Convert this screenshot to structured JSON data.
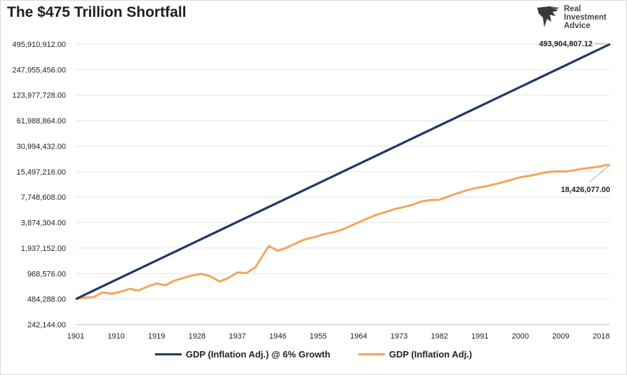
{
  "header": {
    "title": "The $475 Trillion Shortfall",
    "logo_lines": [
      "Real",
      "Investment",
      "Advice"
    ]
  },
  "chart_data": {
    "type": "line",
    "title": "The $475 Trillion Shortfall",
    "xlabel": "",
    "ylabel": "",
    "y_scale": "log2",
    "ylim": [
      242144,
      495910912
    ],
    "y_ticks": [
      "495,910,912.00",
      "247,955,456.00",
      "123,977,728.00",
      "61,988,864.00",
      "30,994,432.00",
      "15,497,216.00",
      "7,748,608.00",
      "3,874,304.00",
      "1,937,152.00",
      "968,576.00",
      "484,288.00",
      "242,144.00"
    ],
    "x_ticks": [
      "1901",
      "1910",
      "1919",
      "1928",
      "1937",
      "1946",
      "1955",
      "1964",
      "1973",
      "1982",
      "1991",
      "2000",
      "2009",
      "2018"
    ],
    "grid": true,
    "legend_position": "bottom",
    "drop_lines": true,
    "series": [
      {
        "name": "GDP (Inflation Adj.) @ 6% Growth",
        "color": "#203864",
        "growth_rate": 0.06,
        "x": [
          1901,
          2020
        ],
        "start_value": 484288,
        "end_value": 493904807.12
      },
      {
        "name": "GDP (Inflation Adj.)",
        "color": "#F4A460",
        "x": [
          1901,
          1903,
          1905,
          1907,
          1909,
          1911,
          1913,
          1915,
          1917,
          1919,
          1921,
          1923,
          1925,
          1927,
          1929,
          1931,
          1933,
          1935,
          1937,
          1939,
          1941,
          1943,
          1944,
          1946,
          1948,
          1950,
          1952,
          1954,
          1956,
          1958,
          1960,
          1962,
          1964,
          1966,
          1968,
          1970,
          1972,
          1974,
          1976,
          1978,
          1980,
          1982,
          1984,
          1986,
          1988,
          1990,
          1992,
          1994,
          1996,
          1998,
          2000,
          2002,
          2004,
          2006,
          2008,
          2010,
          2012,
          2014,
          2016,
          2018,
          2019,
          2020
        ],
        "values": [
          484288,
          505000,
          510000,
          580000,
          560000,
          590000,
          640000,
          610000,
          680000,
          740000,
          705000,
          800000,
          860000,
          920000,
          960000,
          900000,
          780000,
          860000,
          1000000,
          980000,
          1150000,
          1700000,
          2050000,
          1800000,
          1960000,
          2200000,
          2450000,
          2600000,
          2800000,
          2950000,
          3150000,
          3500000,
          3900000,
          4350000,
          4800000,
          5150000,
          5600000,
          5900000,
          6300000,
          6900000,
          7150000,
          7200000,
          7900000,
          8600000,
          9300000,
          9900000,
          10300000,
          10900000,
          11600000,
          12400000,
          13300000,
          13800000,
          14500000,
          15300000,
          15600000,
          15500000,
          16100000,
          16800000,
          17300000,
          17900000,
          18600000,
          18426077.0
        ],
        "end_label": "18,426,077.00"
      }
    ],
    "annotations": [
      "493,904,807.12",
      "18,426,077.00"
    ]
  },
  "legend": {
    "items": [
      {
        "label": "GDP (Inflation Adj.) @ 6% Growth",
        "color": "#203864"
      },
      {
        "label": "GDP (Inflation Adj.)",
        "color": "#F4A460"
      }
    ]
  }
}
